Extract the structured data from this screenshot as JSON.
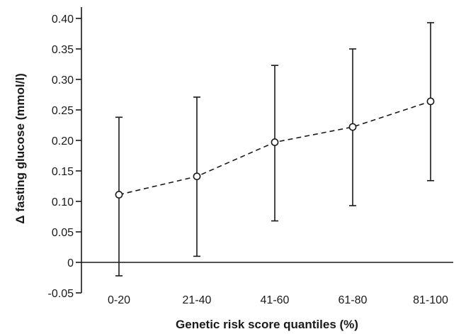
{
  "chart_data": {
    "type": "line",
    "xlabel": "Genetic risk score quantiles (%)",
    "ylabel": "Δ fasting glucose (mmol/l)",
    "categories": [
      "0-20",
      "21-40",
      "41-60",
      "61-80",
      "81-100"
    ],
    "ylim": [
      -0.05,
      0.4
    ],
    "yticks": [
      -0.05,
      0,
      0.05,
      0.1,
      0.15,
      0.2,
      0.25,
      0.3,
      0.35,
      0.4
    ],
    "ytick_labels": [
      "-0.05",
      "0",
      "0.05",
      "0.10",
      "0.15",
      "0.20",
      "0.25",
      "0.30",
      "0.35",
      "0.40"
    ],
    "series": [
      {
        "values": [
          0.111,
          0.141,
          0.197,
          0.222,
          0.264
        ],
        "error_low": [
          -0.022,
          0.01,
          0.068,
          0.093,
          0.134
        ],
        "error_high": [
          0.238,
          0.271,
          0.323,
          0.35,
          0.393
        ],
        "line_style": "dashed",
        "marker": "open-circle"
      }
    ],
    "grid": false,
    "colors": {
      "line": "#1a1a1a",
      "marker_fill": "#ffffff"
    }
  }
}
